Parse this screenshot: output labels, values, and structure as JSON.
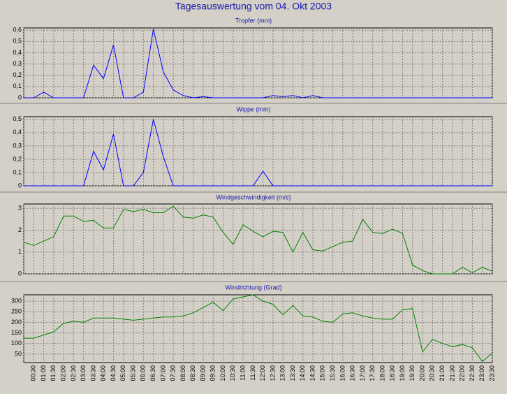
{
  "title": "Tagesauswertung vom 04. Okt 2003",
  "categories": [
    null,
    "00:30",
    "01:00",
    "01:30",
    "02:00",
    "02:30",
    "03:00",
    "03:30",
    "04:00",
    "04:30",
    "05:00",
    "05:30",
    "06:00",
    "06:30",
    "07:00",
    "07:30",
    "08:00",
    "08:30",
    "09:00",
    "09:30",
    "10:00",
    "10:30",
    "11:00",
    "11:30",
    "12:00",
    "12:30",
    "13:00",
    "13:30",
    "14:00",
    "14:30",
    "15:00",
    "15:30",
    "16:00",
    "16:30",
    "17:00",
    "17:30",
    "18:00",
    "18:30",
    "19:00",
    "19:30",
    "20:00",
    "20:30",
    "21:00",
    "21:30",
    "22:00",
    "22:30",
    "23:00",
    "23:30"
  ],
  "chart_data": [
    {
      "type": "line",
      "title": "Tropfer (mm)",
      "color": "#0000ff",
      "ylim": [
        0,
        0.62
      ],
      "yticks": [
        0,
        {
          "value": 0.1,
          "label": "0,1"
        },
        {
          "value": 0.2,
          "label": "0,2"
        },
        {
          "value": 0.3,
          "label": "0,3"
        },
        {
          "value": 0.4,
          "label": "0,4"
        },
        {
          "value": 0.5,
          "label": "0,5"
        },
        {
          "value": 0.6,
          "label": "0,6"
        }
      ],
      "values": [
        0,
        0,
        0.05,
        0,
        0,
        0,
        0,
        0.29,
        0.17,
        0.47,
        0,
        0,
        0.05,
        0.61,
        0.23,
        0.07,
        0.02,
        0,
        0.01,
        0,
        0,
        0,
        0,
        0,
        0,
        0.02,
        0.01,
        0.02,
        0,
        0.02,
        0,
        0,
        0,
        0,
        0,
        0,
        0,
        0,
        0,
        0,
        0,
        0,
        0,
        0,
        0,
        0,
        0,
        0
      ]
    },
    {
      "type": "line",
      "title": "Wippe (mm)",
      "color": "#0000ff",
      "ylim": [
        0,
        0.52
      ],
      "yticks": [
        0,
        {
          "value": 0.1,
          "label": "0,1"
        },
        {
          "value": 0.2,
          "label": "0,2"
        },
        {
          "value": 0.3,
          "label": "0,3"
        },
        {
          "value": 0.4,
          "label": "0,4"
        },
        {
          "value": 0.5,
          "label": "0,5"
        }
      ],
      "values": [
        0,
        0,
        0,
        0,
        0,
        0,
        0,
        0.26,
        0.12,
        0.39,
        0,
        0,
        0.1,
        0.5,
        0.22,
        0,
        0,
        0,
        0,
        0,
        0,
        0,
        0,
        0,
        0.11,
        0,
        0,
        0,
        0,
        0,
        0,
        0,
        0,
        0,
        0,
        0,
        0,
        0,
        0,
        0,
        0,
        0,
        0,
        0,
        0,
        0,
        0,
        0
      ]
    },
    {
      "type": "line",
      "title": "Windgeschwindigkeit (m/s)",
      "color": "#008000",
      "ylim": [
        0,
        3.2
      ],
      "yticks": [
        0,
        1,
        2,
        3
      ],
      "values": [
        1.45,
        1.3,
        1.5,
        1.7,
        2.65,
        2.65,
        2.4,
        2.45,
        2.1,
        2.1,
        2.95,
        2.85,
        2.95,
        2.8,
        2.8,
        3.1,
        2.6,
        2.55,
        2.7,
        2.6,
        1.9,
        1.35,
        2.25,
        1.95,
        1.7,
        1.95,
        1.9,
        1.0,
        1.9,
        1.1,
        1.05,
        1.25,
        1.45,
        1.5,
        2.5,
        1.9,
        1.85,
        2.05,
        1.85,
        0.4,
        0.15,
        0,
        0,
        0,
        0.3,
        0.05,
        0.3,
        0.12
      ]
    },
    {
      "type": "line",
      "title": "Windrichtung (Grad)",
      "color": "#008000",
      "ylim": [
        10,
        330
      ],
      "yticks": [
        50,
        100,
        150,
        200,
        250,
        300
      ],
      "values": [
        125,
        125,
        140,
        155,
        195,
        205,
        200,
        220,
        220,
        220,
        215,
        210,
        215,
        220,
        225,
        225,
        230,
        245,
        270,
        295,
        255,
        310,
        320,
        330,
        300,
        285,
        235,
        280,
        230,
        225,
        205,
        200,
        240,
        245,
        230,
        220,
        215,
        215,
        260,
        265,
        60,
        120,
        100,
        85,
        95,
        80,
        15,
        55
      ]
    }
  ]
}
